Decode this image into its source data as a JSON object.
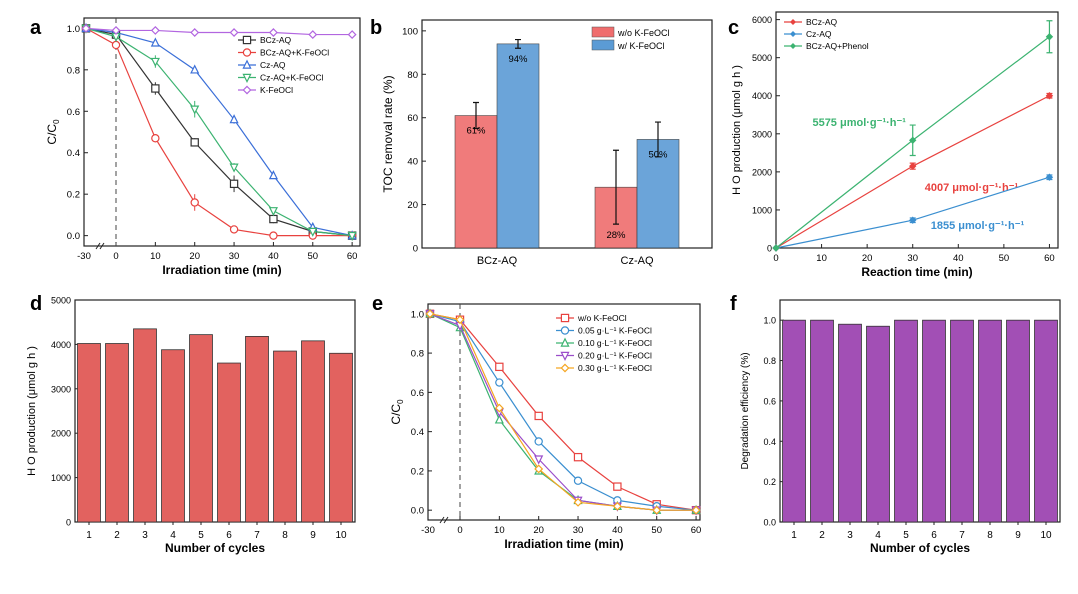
{
  "chart_data": [
    {
      "panel": "a",
      "type": "line",
      "xlabel": "Irradiation  time (min)",
      "ylabel": "C/C",
      "ylabel_sub": "0",
      "xlim": [
        -30,
        62
      ],
      "ylim": [
        -0.05,
        1.05
      ],
      "xticks": [
        -30,
        0,
        10,
        20,
        30,
        40,
        50,
        60
      ],
      "xtick_labels": [
        "-30",
        "0",
        "10",
        "20",
        "30",
        "40",
        "50",
        "60"
      ],
      "yticks": [
        0.0,
        0.2,
        0.4,
        0.6,
        0.8,
        1.0
      ],
      "ytick_labels": [
        "0.0",
        "0.2",
        "0.4",
        "0.6",
        "0.8",
        "1.0"
      ],
      "legend_position": "top-right",
      "dark_period_line_at": 0,
      "series": [
        {
          "name": "BCz-AQ",
          "color": "#333333",
          "marker": "square",
          "x": [
            -30,
            0,
            10,
            20,
            30,
            40,
            50,
            60
          ],
          "y": [
            1.0,
            0.97,
            0.71,
            0.45,
            0.25,
            0.08,
            0.02,
            0.0
          ],
          "err": [
            0,
            0.02,
            0.03,
            0.02,
            0.04,
            0.02,
            0.01,
            0.01
          ]
        },
        {
          "name": "BCz-AQ+K-FeOCl",
          "color": "#e8423f",
          "marker": "circle",
          "x": [
            -30,
            0,
            10,
            20,
            30,
            40,
            50,
            60
          ],
          "y": [
            1.0,
            0.92,
            0.47,
            0.16,
            0.03,
            0.0,
            0.0,
            0.0
          ],
          "err": [
            0,
            0.02,
            0.02,
            0.04,
            0.01,
            0.01,
            0.01,
            0.01
          ]
        },
        {
          "name": "Cz-AQ",
          "color": "#3b6fd8",
          "marker": "triangle-up",
          "x": [
            -30,
            0,
            10,
            20,
            30,
            40,
            50,
            60
          ],
          "y": [
            1.0,
            0.98,
            0.93,
            0.8,
            0.56,
            0.29,
            0.04,
            0.0
          ],
          "err": [
            0,
            0.01,
            0.01,
            0.01,
            0.02,
            0.01,
            0.01,
            0.01
          ]
        },
        {
          "name": "Cz-AQ+K-FeOCl",
          "color": "#3cb371",
          "marker": "triangle-down",
          "x": [
            -30,
            0,
            10,
            20,
            30,
            40,
            50,
            60
          ],
          "y": [
            1.0,
            0.96,
            0.84,
            0.61,
            0.33,
            0.12,
            0.02,
            0.0
          ],
          "err": [
            0,
            0.02,
            0.03,
            0.04,
            0.02,
            0.01,
            0.01,
            0.01
          ]
        },
        {
          "name": "K-FeOCl",
          "color": "#b266e0",
          "marker": "diamond",
          "x": [
            -30,
            0,
            10,
            20,
            30,
            40,
            50,
            60
          ],
          "y": [
            1.0,
            0.99,
            0.99,
            0.98,
            0.98,
            0.98,
            0.97,
            0.97
          ],
          "err": [
            0,
            0.01,
            0.01,
            0.01,
            0.01,
            0.01,
            0.01,
            0.01
          ]
        }
      ]
    },
    {
      "panel": "b",
      "type": "bar",
      "ylabel": "TOC removal rate (%)",
      "ylim": [
        0,
        105
      ],
      "yticks": [
        0,
        20,
        40,
        60,
        80,
        100
      ],
      "ytick_labels": [
        "0",
        "20",
        "40",
        "60",
        "80",
        "100"
      ],
      "categories": [
        "BCz-AQ",
        "Cz-AQ"
      ],
      "legend_position": "top-right",
      "series": [
        {
          "name": "w/o K-FeOCl",
          "color": "#ef6d6d",
          "values": [
            61,
            28
          ],
          "errors": [
            6,
            17
          ],
          "labels": [
            "61%",
            "28%"
          ]
        },
        {
          "name": "w/ K-FeOCl",
          "color": "#5b9bd5",
          "values": [
            94,
            50
          ],
          "errors": [
            2,
            8
          ],
          "labels": [
            "94%",
            "50%"
          ]
        }
      ]
    },
    {
      "panel": "c",
      "type": "line",
      "xlabel": "Reaction time (min)",
      "ylabel": "H O  production (μmol g  h )",
      "xlim": [
        0,
        61
      ],
      "ylim": [
        0,
        6200
      ],
      "xticks": [
        0,
        10,
        20,
        30,
        40,
        50,
        60
      ],
      "xtick_labels": [
        "0",
        "10",
        "20",
        "30",
        "40",
        "50",
        "60"
      ],
      "yticks": [
        0,
        1000,
        2000,
        3000,
        4000,
        5000,
        6000
      ],
      "ytick_labels": [
        "0",
        "1000",
        "2000",
        "3000",
        "4000",
        "5000",
        "6000"
      ],
      "legend_position": "top-left",
      "series": [
        {
          "name": "BCz-AQ",
          "color": "#e8423f",
          "marker": "diamond",
          "x": [
            0,
            30,
            60
          ],
          "y": [
            0,
            2150,
            4000
          ],
          "err": [
            0,
            80,
            60
          ],
          "annotation": "4007 μmol·g⁻¹·h⁻¹"
        },
        {
          "name": "Cz-AQ",
          "color": "#3b8fd0",
          "marker": "diamond",
          "x": [
            0,
            30,
            60
          ],
          "y": [
            0,
            730,
            1860
          ],
          "err": [
            0,
            60,
            60
          ],
          "annotation": "1855 μmol·g⁻¹·h⁻¹"
        },
        {
          "name": "BCz-AQ+Phenol",
          "color": "#3cb371",
          "marker": "diamond",
          "x": [
            0,
            30,
            60
          ],
          "y": [
            0,
            2830,
            5550
          ],
          "err": [
            0,
            400,
            420
          ],
          "annotation": "5575 μmol·g⁻¹·h⁻¹"
        }
      ]
    },
    {
      "panel": "d",
      "type": "bar",
      "xlabel": "Number of cycles",
      "ylabel": "H O  production (μmol g  h )",
      "ylim": [
        0,
        5000
      ],
      "yticks": [
        0,
        1000,
        2000,
        3000,
        4000,
        5000
      ],
      "ytick_labels": [
        "0",
        "1000",
        "2000",
        "3000",
        "4000",
        "5000"
      ],
      "categories": [
        "1",
        "2",
        "3",
        "4",
        "5",
        "6",
        "7",
        "8",
        "9",
        "10"
      ],
      "values": [
        4020,
        4020,
        4350,
        3880,
        4220,
        3580,
        4180,
        3850,
        4080,
        3800
      ],
      "color": "#e2625f"
    },
    {
      "panel": "e",
      "type": "line",
      "xlabel": "Irradiation  time (min)",
      "ylabel": "C/C",
      "ylabel_sub": "0",
      "xlim": [
        -30,
        61
      ],
      "ylim": [
        -0.05,
        1.05
      ],
      "xticks": [
        -30,
        0,
        10,
        20,
        30,
        40,
        50,
        60
      ],
      "xtick_labels": [
        "-30",
        "0",
        "10",
        "20",
        "30",
        "40",
        "50",
        "60"
      ],
      "yticks": [
        0.0,
        0.2,
        0.4,
        0.6,
        0.8,
        1.0
      ],
      "ytick_labels": [
        "0.0",
        "0.2",
        "0.4",
        "0.6",
        "0.8",
        "1.0"
      ],
      "legend_position": "top-right",
      "dark_period_line_at": 0,
      "series": [
        {
          "name": "w/o K-FeOCl",
          "color": "#e8423f",
          "marker": "square",
          "x": [
            -30,
            0,
            10,
            20,
            30,
            40,
            50,
            60
          ],
          "y": [
            1.0,
            0.97,
            0.73,
            0.48,
            0.27,
            0.12,
            0.03,
            0.0
          ]
        },
        {
          "name": "0.05 g·L⁻¹ K-FeOCl",
          "color": "#3b8fd0",
          "marker": "circle",
          "x": [
            -30,
            0,
            10,
            20,
            30,
            40,
            50,
            60
          ],
          "y": [
            1.0,
            0.96,
            0.65,
            0.35,
            0.15,
            0.05,
            0.02,
            0.0
          ]
        },
        {
          "name": "0.10 g·L⁻¹ K-FeOCl",
          "color": "#3cb371",
          "marker": "triangle-up",
          "x": [
            -30,
            0,
            10,
            20,
            30,
            40,
            50,
            60
          ],
          "y": [
            1.0,
            0.93,
            0.46,
            0.2,
            0.05,
            0.02,
            0.0,
            0.0
          ]
        },
        {
          "name": "0.20 g·L⁻¹ K-FeOCl",
          "color": "#9b4dca",
          "marker": "triangle-down",
          "x": [
            -30,
            0,
            10,
            20,
            30,
            40,
            50,
            60
          ],
          "y": [
            1.0,
            0.94,
            0.5,
            0.26,
            0.05,
            0.02,
            0.0,
            0.0
          ]
        },
        {
          "name": "0.30 g·L⁻¹ K-FeOCl",
          "color": "#f5a623",
          "marker": "diamond",
          "x": [
            -30,
            0,
            10,
            20,
            30,
            40,
            50,
            60
          ],
          "y": [
            1.0,
            0.97,
            0.52,
            0.21,
            0.04,
            0.02,
            0.0,
            0.0
          ]
        }
      ]
    },
    {
      "panel": "f",
      "type": "bar",
      "xlabel": "Number of cycles",
      "ylabel": "Degradation efficiency (%)",
      "ylim": [
        0,
        1.1
      ],
      "yticks": [
        0.0,
        0.2,
        0.4,
        0.6,
        0.8,
        1.0
      ],
      "ytick_labels": [
        "0.0",
        "0.2",
        "0.4",
        "0.6",
        "0.8",
        "1.0"
      ],
      "categories": [
        "1",
        "2",
        "3",
        "4",
        "5",
        "6",
        "7",
        "8",
        "9",
        "10"
      ],
      "values": [
        1.0,
        1.0,
        0.98,
        0.97,
        1.0,
        1.0,
        1.0,
        1.0,
        1.0,
        1.0
      ],
      "color": "#a24fb5"
    }
  ]
}
